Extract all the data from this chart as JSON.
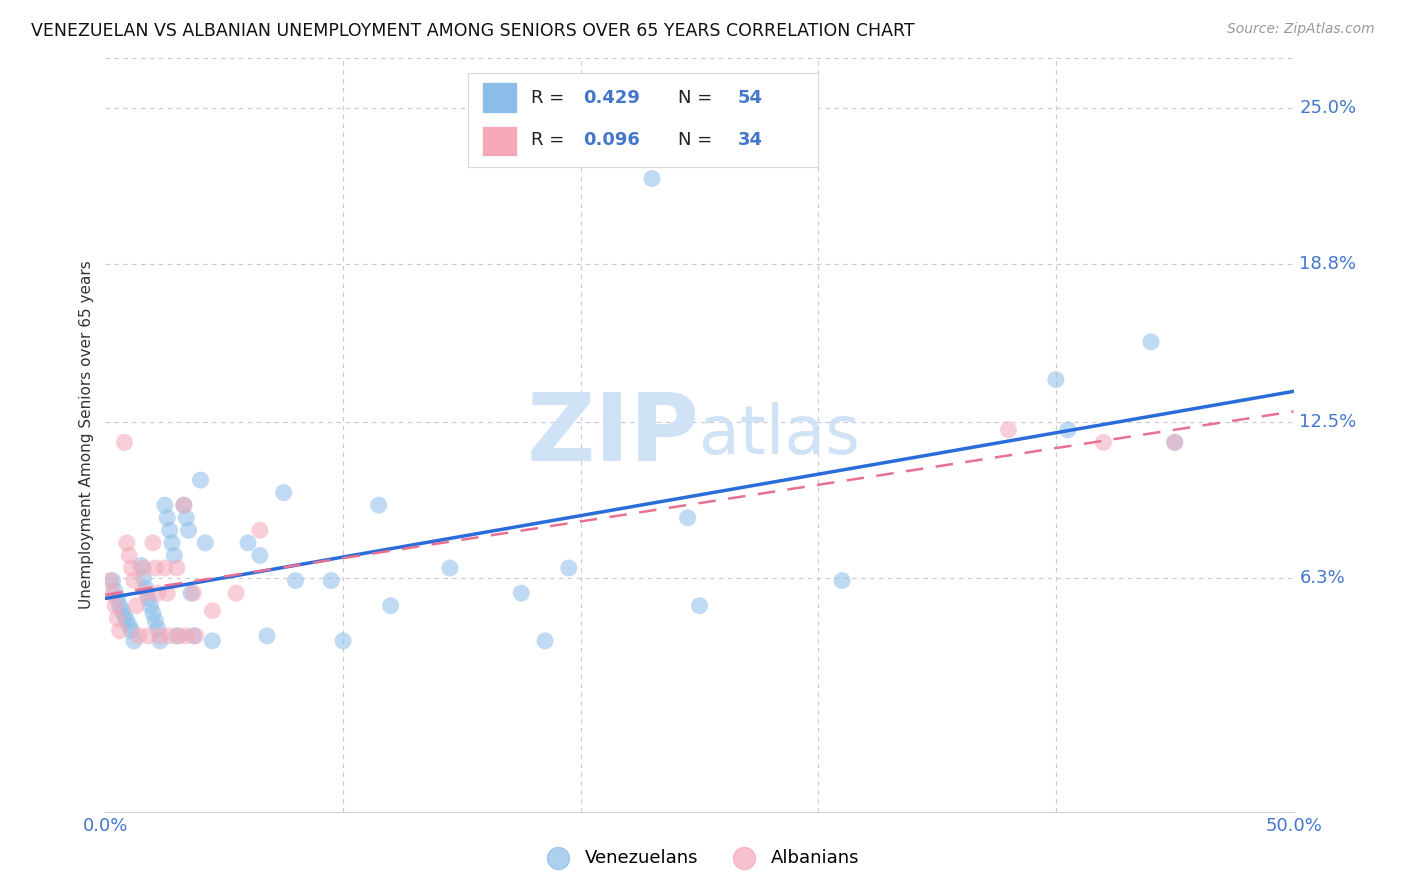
{
  "title": "VENEZUELAN VS ALBANIAN UNEMPLOYMENT AMONG SENIORS OVER 65 YEARS CORRELATION CHART",
  "source": "Source: ZipAtlas.com",
  "ylabel": "Unemployment Among Seniors over 65 years",
  "xlim": [
    0.0,
    0.5
  ],
  "ylim": [
    -0.03,
    0.27
  ],
  "right_yticks": [
    0.063,
    0.125,
    0.188,
    0.25
  ],
  "right_yticklabels": [
    "6.3%",
    "12.5%",
    "18.8%",
    "25.0%"
  ],
  "venezuelan_R": 0.429,
  "venezuelan_N": 54,
  "albanian_R": 0.096,
  "albanian_N": 34,
  "venezuelan_color": "#8bbde8",
  "albanian_color": "#f4a8b8",
  "venezuelan_line_color": "#2a6dd9",
  "albanian_line_color": "#e87090",
  "venezuelan_x": [
    0.003,
    0.004,
    0.005,
    0.006,
    0.007,
    0.008,
    0.009,
    0.01,
    0.011,
    0.012,
    0.015,
    0.016,
    0.017,
    0.018,
    0.019,
    0.02,
    0.021,
    0.022,
    0.023,
    0.025,
    0.026,
    0.027,
    0.028,
    0.029,
    0.03,
    0.033,
    0.034,
    0.035,
    0.036,
    0.037,
    0.04,
    0.042,
    0.045,
    0.06,
    0.065,
    0.068,
    0.075,
    0.08,
    0.095,
    0.1,
    0.115,
    0.12,
    0.145,
    0.175,
    0.185,
    0.195,
    0.23,
    0.245,
    0.25,
    0.31,
    0.4,
    0.405,
    0.44,
    0.45
  ],
  "venezuelan_y": [
    0.062,
    0.058,
    0.055,
    0.052,
    0.05,
    0.048,
    0.046,
    0.044,
    0.042,
    0.038,
    0.068,
    0.063,
    0.059,
    0.055,
    0.052,
    0.049,
    0.046,
    0.043,
    0.038,
    0.092,
    0.087,
    0.082,
    0.077,
    0.072,
    0.04,
    0.092,
    0.087,
    0.082,
    0.057,
    0.04,
    0.102,
    0.077,
    0.038,
    0.077,
    0.072,
    0.04,
    0.097,
    0.062,
    0.062,
    0.038,
    0.092,
    0.052,
    0.067,
    0.057,
    0.038,
    0.067,
    0.222,
    0.087,
    0.052,
    0.062,
    0.142,
    0.122,
    0.157,
    0.117
  ],
  "albanian_x": [
    0.002,
    0.003,
    0.004,
    0.005,
    0.006,
    0.008,
    0.009,
    0.01,
    0.011,
    0.012,
    0.013,
    0.014,
    0.016,
    0.017,
    0.018,
    0.02,
    0.021,
    0.022,
    0.023,
    0.025,
    0.026,
    0.027,
    0.03,
    0.031,
    0.033,
    0.034,
    0.037,
    0.038,
    0.045,
    0.055,
    0.065,
    0.38,
    0.42,
    0.45
  ],
  "albanian_y": [
    0.062,
    0.057,
    0.052,
    0.047,
    0.042,
    0.117,
    0.077,
    0.072,
    0.067,
    0.062,
    0.052,
    0.04,
    0.067,
    0.057,
    0.04,
    0.077,
    0.067,
    0.057,
    0.04,
    0.067,
    0.057,
    0.04,
    0.067,
    0.04,
    0.092,
    0.04,
    0.057,
    0.04,
    0.05,
    0.057,
    0.082,
    0.122,
    0.117,
    0.117
  ]
}
